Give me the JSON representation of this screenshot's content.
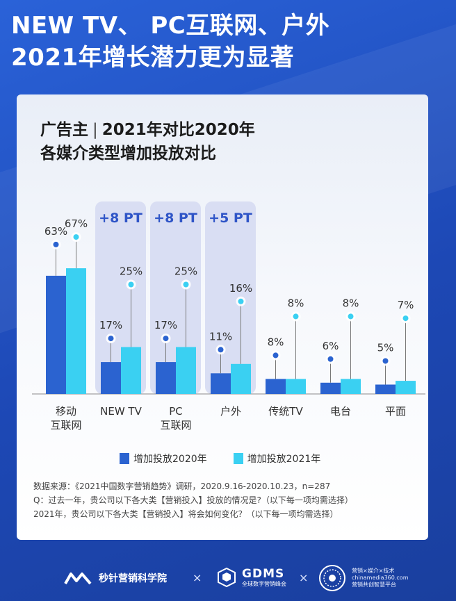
{
  "headline": {
    "line1": "NEW TV、 PC互联网、户外",
    "line2": "2021年增长潜力更为显著"
  },
  "card": {
    "title_left": "广告主",
    "title_sep": "|",
    "title_right": "2021年对比2020年",
    "subtitle": "各媒介类型增加投放对比"
  },
  "chart_data": {
    "type": "bar",
    "title": "各媒介类型增加投放对比",
    "categories": [
      [
        "移动",
        "互联网"
      ],
      [
        "NEW TV"
      ],
      [
        "PC",
        "互联网"
      ],
      [
        "户外"
      ],
      [
        "传统TV"
      ],
      [
        "电台"
      ],
      [
        "平面"
      ]
    ],
    "series": [
      {
        "name": "增加投放2020年",
        "values": [
          63,
          17,
          17,
          11,
          8,
          6,
          5
        ],
        "color": "#2b63d0"
      },
      {
        "name": "增加投放2021年",
        "values": [
          67,
          25,
          25,
          16,
          8,
          8,
          7
        ],
        "color": "#3ad0f2"
      }
    ],
    "value_labels": [
      [
        "63%",
        "17%",
        "17%",
        "11%",
        "8%",
        "6%",
        "5%"
      ],
      [
        "67%",
        "25%",
        "25%",
        "16%",
        "8%",
        "8%",
        "7%"
      ]
    ],
    "highlights": [
      {
        "category_index": 1,
        "label": "+8 PT"
      },
      {
        "category_index": 2,
        "label": "+8 PT"
      },
      {
        "category_index": 3,
        "label": "+5 PT"
      }
    ],
    "ylim": [
      0,
      70
    ],
    "xlabel": "",
    "ylabel": "",
    "grid": false,
    "legend": "bottom"
  },
  "legend": {
    "items": [
      "增加投放2020年",
      "增加投放2021年"
    ]
  },
  "notes": {
    "source": "数据来源：《2021中国数字营销趋势》调研，2020.9.16-2020.10.23，n=287",
    "q1": "Q：过去一年，贵公司以下各大类【营销投入】投放的情况是?（以下每一项均需选择）",
    "q2": "2021年，贵公司以下各大类【营销投入】将会如何变化？（以下每一项均需选择）"
  },
  "footer": {
    "logo1_name": "秒针营销科学院",
    "times": "×",
    "logo2_name": "GDMS",
    "logo2_sub": "全球数字营销峰会",
    "logo3_line1": "营销×媒介×技术",
    "logo3_line2": "chinamedia360.com",
    "logo3_line3": "营销共创智慧平台"
  },
  "colors": {
    "accent_dark": "#2b63d0",
    "accent_light": "#3ad0f2",
    "background": "#1f4fc0",
    "highlight_band": "#d9def3",
    "highlight_text": "#2f55c7"
  }
}
